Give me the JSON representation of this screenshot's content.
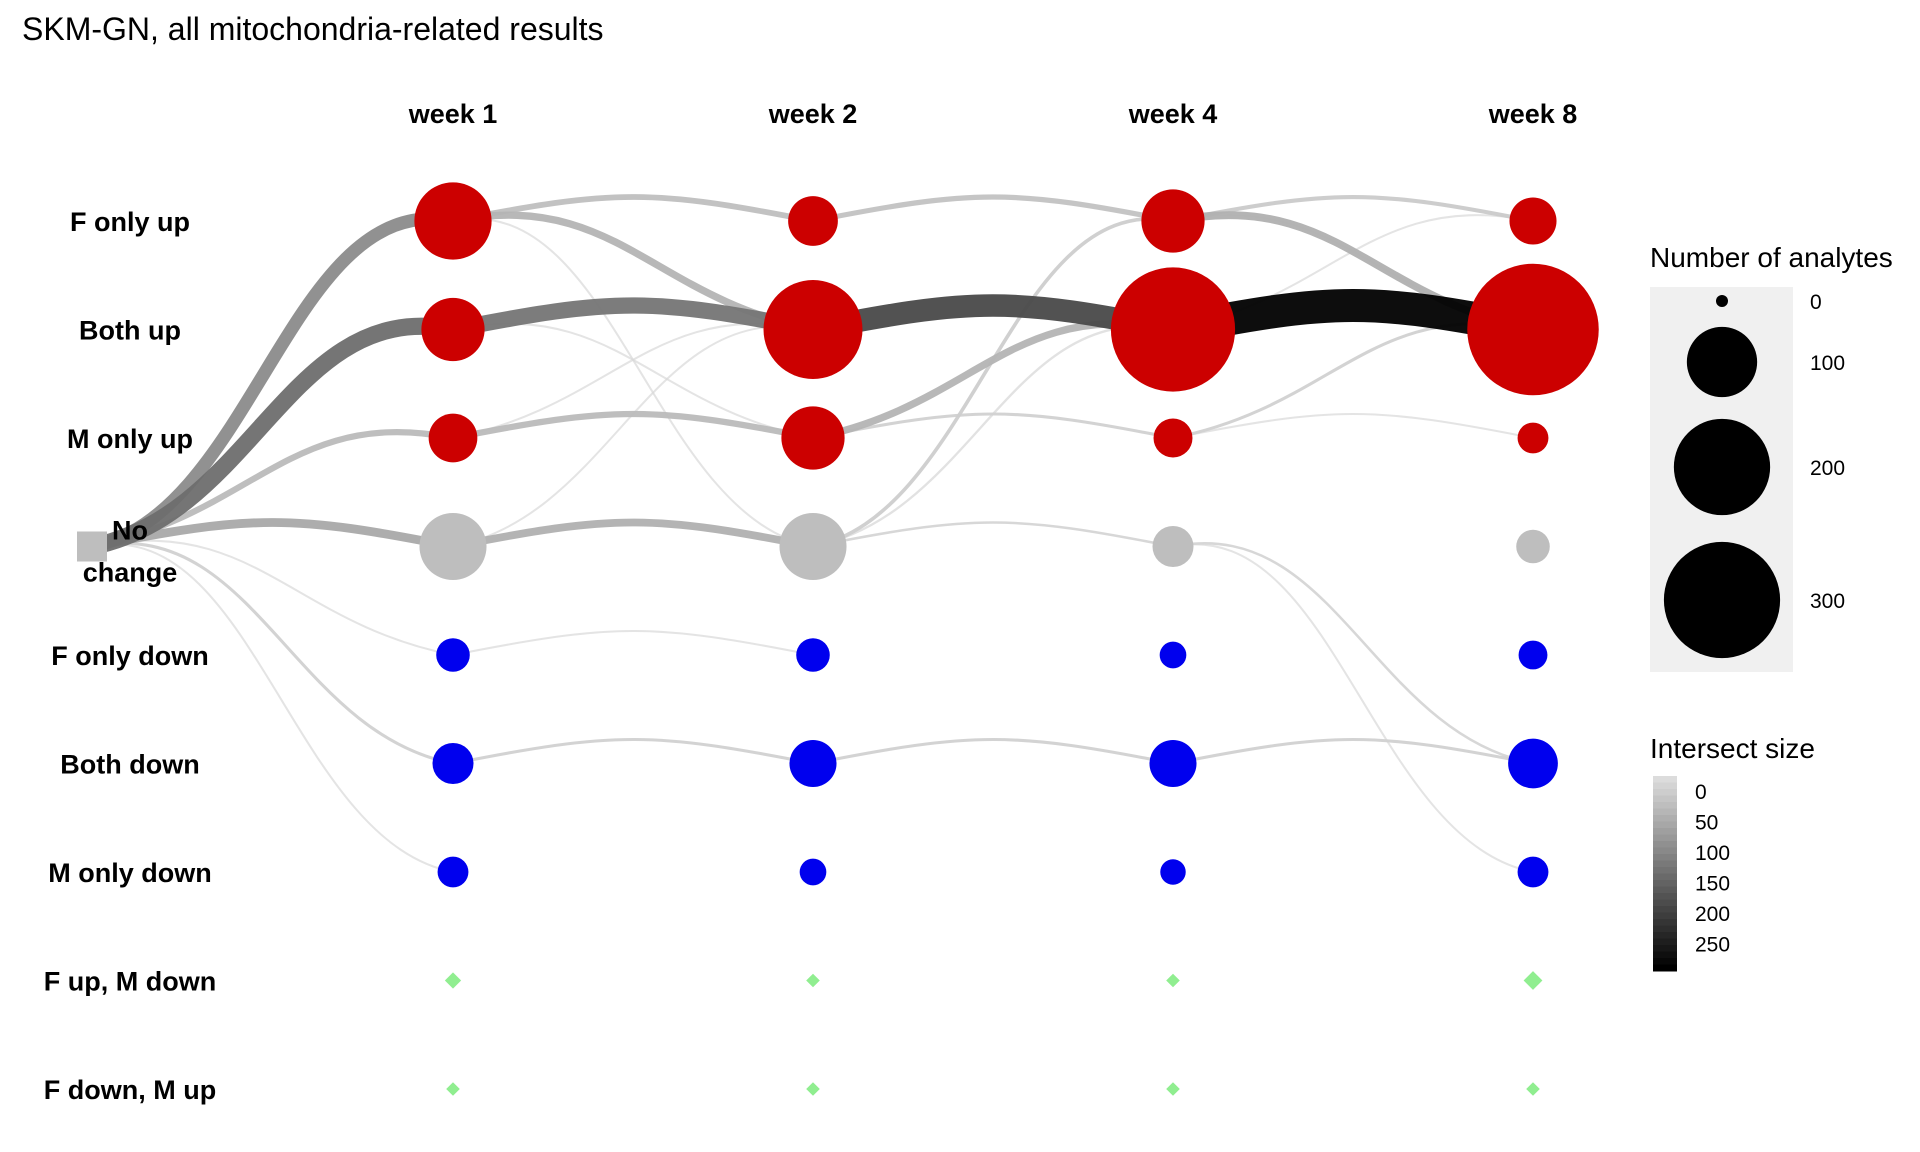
{
  "chart_data": {
    "type": "alluvial-dot",
    "title": "SKM-GN, all mitochondria-related results",
    "columns": [
      "week 1",
      "week 2",
      "week 4",
      "week 8"
    ],
    "rows": [
      {
        "label": "F only up",
        "category": "up"
      },
      {
        "label": "Both up",
        "category": "up"
      },
      {
        "label": "M only up",
        "category": "up"
      },
      {
        "label": "No\nchange",
        "category": "none"
      },
      {
        "label": "F only down",
        "category": "down"
      },
      {
        "label": "Both down",
        "category": "down"
      },
      {
        "label": "M only down",
        "category": "down"
      },
      {
        "label": "F up, M down",
        "category": "mixed"
      },
      {
        "label": "F down, M up",
        "category": "mixed"
      }
    ],
    "colors": {
      "up": "#cc0000",
      "down": "#0000ee",
      "none": "#bebebe",
      "mixed": "#90ee90"
    },
    "start_node": {
      "row": 3
    },
    "node_sizes": [
      [
        110,
        70,
        38,
        80,
        15,
        25,
        12,
        3,
        1
      ],
      [
        40,
        190,
        70,
        80,
        15,
        35,
        8,
        1,
        1
      ],
      [
        70,
        310,
        22,
        25,
        8,
        35,
        7,
        1,
        1
      ],
      [
        35,
        350,
        12,
        15,
        10,
        40,
        12,
        6,
        1
      ]
    ],
    "flows": [
      {
        "from": [
          -1,
          3
        ],
        "to": [
          0,
          0
        ],
        "size": 110
      },
      {
        "from": [
          -1,
          3
        ],
        "to": [
          0,
          1
        ],
        "size": 150
      },
      {
        "from": [
          -1,
          3
        ],
        "to": [
          0,
          2
        ],
        "size": 45
      },
      {
        "from": [
          -1,
          3
        ],
        "to": [
          0,
          3
        ],
        "size": 70
      },
      {
        "from": [
          -1,
          3
        ],
        "to": [
          0,
          4
        ],
        "size": 5
      },
      {
        "from": [
          -1,
          3
        ],
        "to": [
          0,
          5
        ],
        "size": 15
      },
      {
        "from": [
          -1,
          3
        ],
        "to": [
          0,
          6
        ],
        "size": 5
      },
      {
        "from": [
          0,
          0
        ],
        "to": [
          1,
          0
        ],
        "size": 40
      },
      {
        "from": [
          0,
          0
        ],
        "to": [
          1,
          1
        ],
        "size": 55
      },
      {
        "from": [
          0,
          0
        ],
        "to": [
          1,
          3
        ],
        "size": 5
      },
      {
        "from": [
          0,
          1
        ],
        "to": [
          1,
          1
        ],
        "size": 140
      },
      {
        "from": [
          0,
          1
        ],
        "to": [
          1,
          2
        ],
        "size": 5
      },
      {
        "from": [
          0,
          2
        ],
        "to": [
          1,
          2
        ],
        "size": 45
      },
      {
        "from": [
          0,
          2
        ],
        "to": [
          1,
          1
        ],
        "size": 5
      },
      {
        "from": [
          0,
          3
        ],
        "to": [
          1,
          3
        ],
        "size": 60
      },
      {
        "from": [
          0,
          3
        ],
        "to": [
          1,
          1
        ],
        "size": 5
      },
      {
        "from": [
          0,
          4
        ],
        "to": [
          1,
          4
        ],
        "size": 5
      },
      {
        "from": [
          0,
          5
        ],
        "to": [
          1,
          5
        ],
        "size": 15
      },
      {
        "from": [
          1,
          0
        ],
        "to": [
          2,
          0
        ],
        "size": 35
      },
      {
        "from": [
          1,
          1
        ],
        "to": [
          2,
          1
        ],
        "size": 200
      },
      {
        "from": [
          1,
          2
        ],
        "to": [
          2,
          1
        ],
        "size": 55
      },
      {
        "from": [
          1,
          2
        ],
        "to": [
          2,
          2
        ],
        "size": 15
      },
      {
        "from": [
          1,
          3
        ],
        "to": [
          2,
          0
        ],
        "size": 20
      },
      {
        "from": [
          1,
          3
        ],
        "to": [
          2,
          1
        ],
        "size": 8
      },
      {
        "from": [
          1,
          3
        ],
        "to": [
          2,
          3
        ],
        "size": 10
      },
      {
        "from": [
          1,
          5
        ],
        "to": [
          2,
          5
        ],
        "size": 15
      },
      {
        "from": [
          2,
          0
        ],
        "to": [
          3,
          0
        ],
        "size": 25
      },
      {
        "from": [
          2,
          0
        ],
        "to": [
          3,
          1
        ],
        "size": 60
      },
      {
        "from": [
          2,
          0
        ],
        "to": [
          3,
          1
        ],
        "size": 5
      },
      {
        "from": [
          2,
          1
        ],
        "to": [
          3,
          1
        ],
        "size": 300
      },
      {
        "from": [
          2,
          1
        ],
        "to": [
          3,
          0
        ],
        "size": 5
      },
      {
        "from": [
          2,
          2
        ],
        "to": [
          3,
          1
        ],
        "size": 15
      },
      {
        "from": [
          2,
          2
        ],
        "to": [
          3,
          2
        ],
        "size": 5
      },
      {
        "from": [
          2,
          3
        ],
        "to": [
          3,
          5
        ],
        "size": 10
      },
      {
        "from": [
          2,
          3
        ],
        "to": [
          3,
          6
        ],
        "size": 5
      },
      {
        "from": [
          2,
          5
        ],
        "to": [
          3,
          5
        ],
        "size": 15
      }
    ],
    "size_legend": {
      "title": "Number of analytes",
      "values": [
        0,
        100,
        200,
        300
      ]
    },
    "intersect_legend": {
      "title": "Intersect size",
      "values": [
        0,
        50,
        100,
        150,
        200,
        250
      ],
      "max": 300
    },
    "xlabel": "",
    "ylabel": ""
  }
}
